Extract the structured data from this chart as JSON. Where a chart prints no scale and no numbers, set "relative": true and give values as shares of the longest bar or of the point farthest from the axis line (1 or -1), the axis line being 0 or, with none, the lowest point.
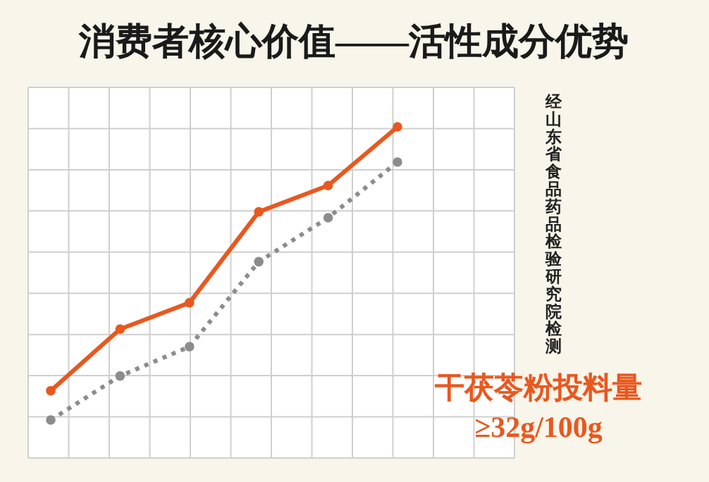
{
  "chart_data": {
    "type": "line",
    "title": "消费者核心价值——活性成分优势",
    "relative": true,
    "grid": true,
    "marker": "circle",
    "categories": [
      null,
      null,
      null,
      null,
      null,
      null
    ],
    "series": [
      {
        "color": "#e8581f",
        "line_style": "solid",
        "values": [
          0.1,
          0.31,
          0.4,
          0.71,
          0.8,
          1
        ]
      },
      {
        "color": "#8c8c8c",
        "line_style": "dotted",
        "values": [
          0,
          0.15,
          0.25,
          0.54,
          0.69,
          0.88
        ]
      }
    ],
    "annotations": [
      "经山东省食品药品检验研究院检测",
      "干茯苓粉投料量",
      "≥32g/100g"
    ]
  }
}
